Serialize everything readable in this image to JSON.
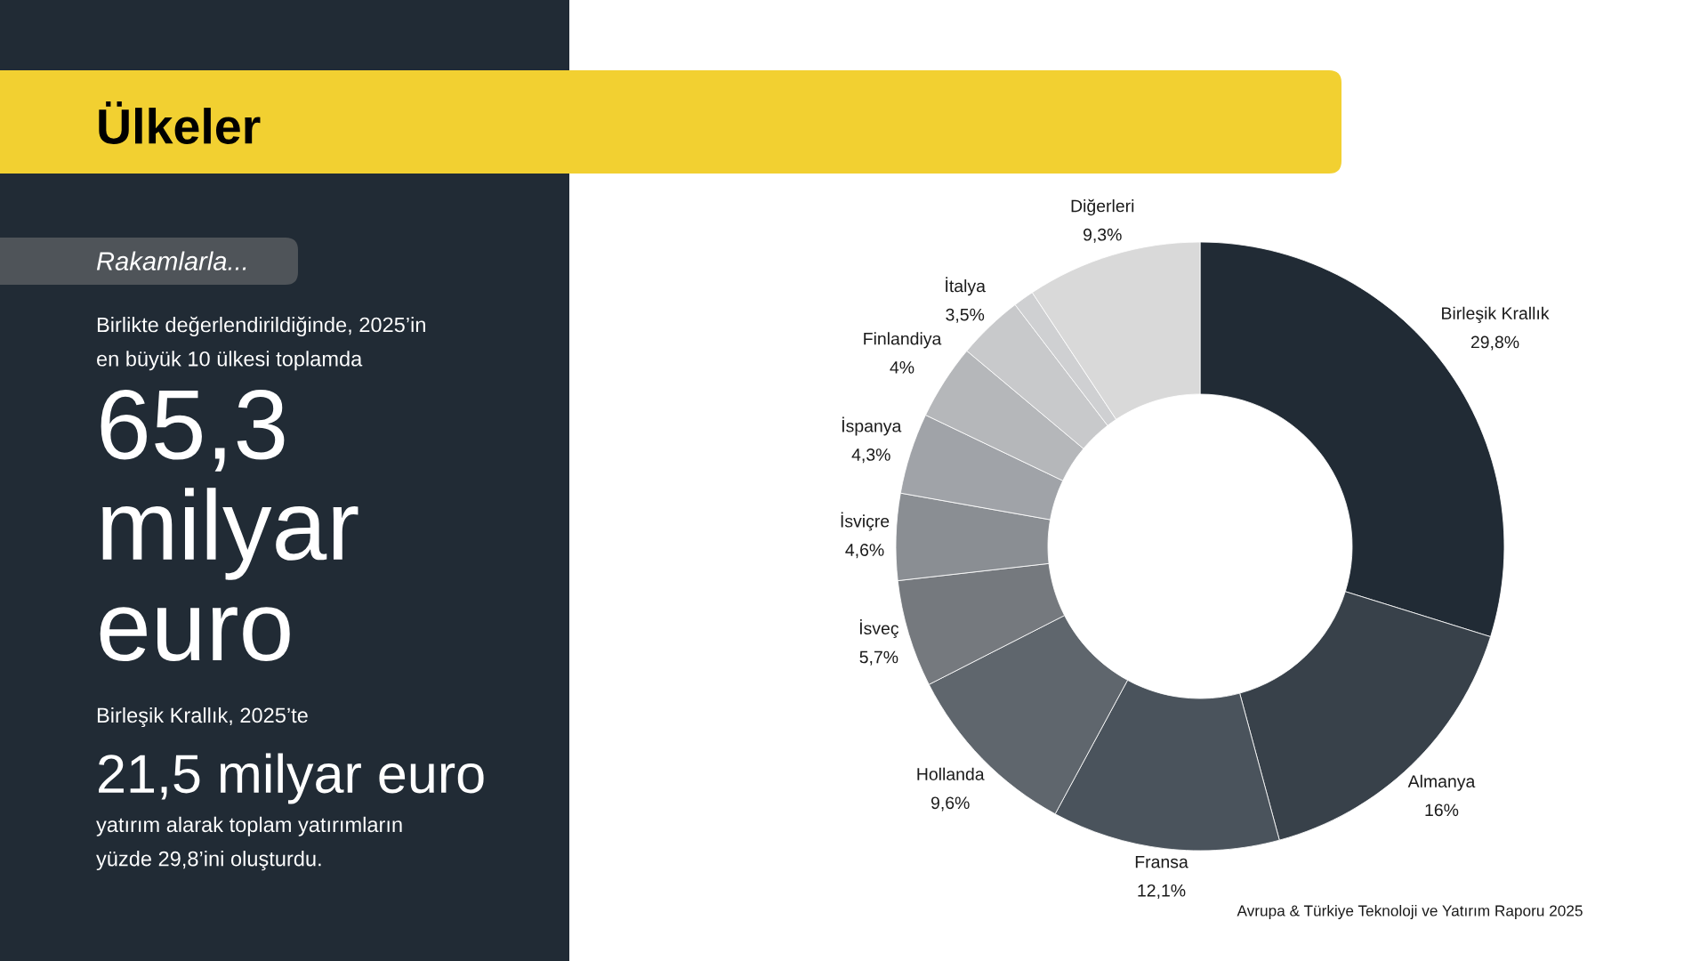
{
  "chart_data": [
    {
      "type": "other",
      "title": "Ülkeler",
      "subtitle": "Rakamlarla...",
      "annotations": [
        "Birlikte değerlendirildiğinde, 2025’in\nen büyük 10 ülkesi toplamda",
        "65,3\nmilyar\neuro",
        "Birleşik Krallık, 2025’te",
        "21,5 milyar euro",
        "yatırım alarak toplam yatırımların\nyüzde 29,8’ini oluşturdu."
      ]
    },
    {
      "type": "donut",
      "categories": [
        "Birleşik Krallık",
        "Almanya",
        "Fransa",
        "Hollanda",
        "İsveç",
        "İsviçre",
        "İspanya",
        "Finlandiya",
        "İtalya",
        null,
        "Diğerleri"
      ],
      "values": [
        29.8,
        16,
        12.1,
        9.6,
        5.7,
        4.6,
        4.3,
        4,
        3.5,
        1.1,
        9.3
      ],
      "value_labels": [
        "29,8%",
        "16%",
        "12,1%",
        "9,6%",
        "5,7%",
        "4,6%",
        "4,3%",
        "4%",
        "3,5%",
        null,
        "9,3%"
      ],
      "colors": [
        "#212b35",
        "#38414a",
        "#4a535c",
        "#5f666d",
        "#75797e",
        "#8a8e93",
        "#a0a3a8",
        "#b5b7ba",
        "#c8c9cb",
        "#cfd0d2",
        "#d9d9d9"
      ],
      "annotations": [
        "Avrupa & Türkiye Teknoloji ve Yatırım Raporu 2025"
      ]
    }
  ]
}
